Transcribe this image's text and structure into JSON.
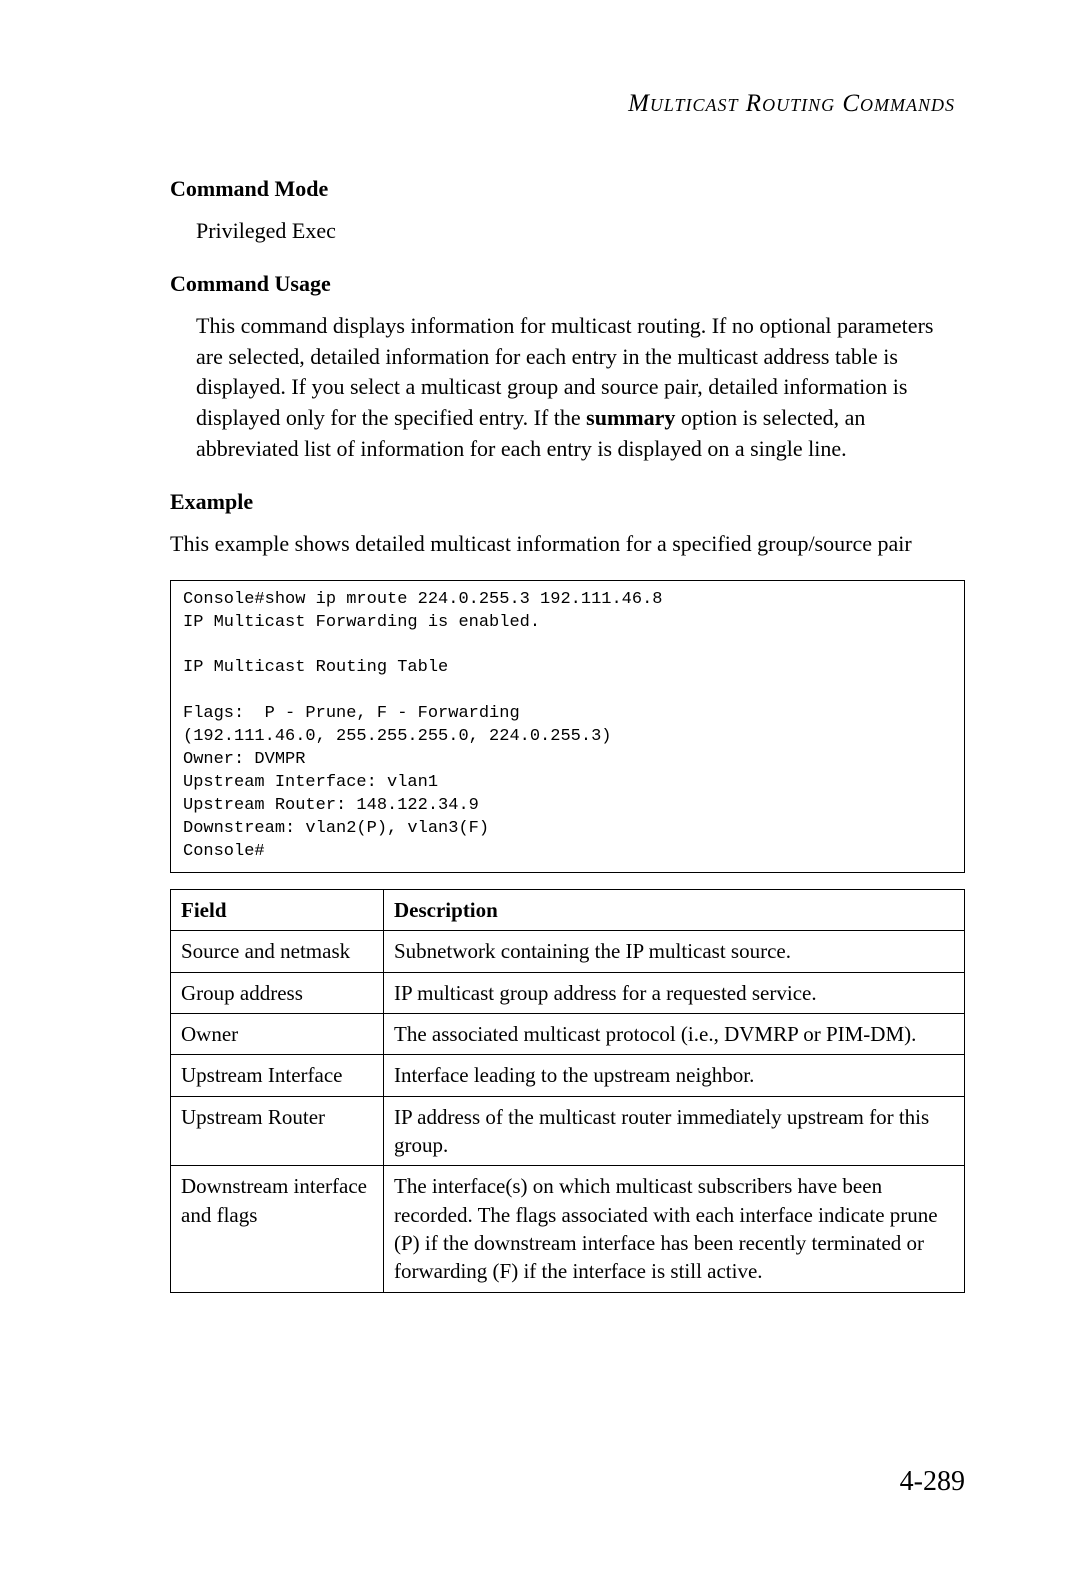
{
  "header": "Multicast Routing Commands",
  "sections": {
    "command_mode_title": "Command Mode",
    "command_mode_text": "Privileged Exec",
    "command_usage_title": "Command Usage",
    "command_usage_pre": "This command displays information for multicast routing. If no optional parameters are selected, detailed information for each entry in the multicast address table is displayed. If you select a multicast group and source pair, detailed information is displayed only for the specified entry. If the ",
    "command_usage_bold": "summary",
    "command_usage_post": " option is selected, an abbreviated list of information for each entry is displayed on a single line.",
    "example_title": "Example",
    "example_text": "This example shows detailed multicast information for a specified group/source pair"
  },
  "code": "Console#show ip mroute 224.0.255.3 192.111.46.8\nIP Multicast Forwarding is enabled.\n\nIP Multicast Routing Table\n\nFlags:  P - Prune, F - Forwarding\n(192.111.46.0, 255.255.255.0, 224.0.255.3)\nOwner: DVMPR\nUpstream Interface: vlan1\nUpstream Router: 148.122.34.9\nDownstream: vlan2(P), vlan3(F)\nConsole#",
  "table": {
    "headers": [
      "Field",
      "Description"
    ],
    "rows": [
      [
        "Source and netmask",
        "Subnetwork containing the IP multicast source."
      ],
      [
        "Group address",
        "IP multicast group address for a requested service."
      ],
      [
        "Owner",
        "The associated multicast protocol (i.e., DVMRP or PIM-DM)."
      ],
      [
        "Upstream Interface",
        "Interface leading to the upstream neighbor."
      ],
      [
        "Upstream Router",
        "IP address of the multicast router immediately upstream for this group."
      ],
      [
        "Downstream interface and flags",
        "The interface(s) on which multicast subscribers have been recorded. The flags associated with each interface indicate prune (P) if the downstream interface has been recently terminated or forwarding (F) if the interface is still active."
      ]
    ]
  },
  "page_number": "4-289"
}
